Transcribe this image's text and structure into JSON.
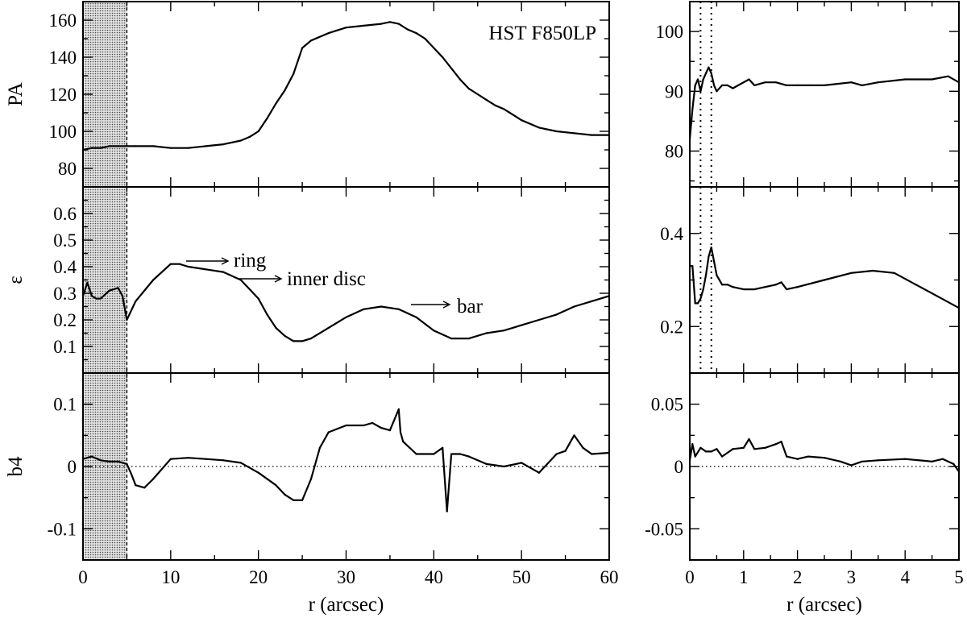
{
  "chart_data": [
    {
      "type": "line",
      "panel": "left-top",
      "ylabel": "PA",
      "ylim": [
        70,
        170
      ],
      "yticks": [
        80,
        100,
        120,
        140,
        160
      ],
      "xlim": [
        0,
        60
      ],
      "annotation": "HST F850LP",
      "shaded_region": [
        0,
        5
      ],
      "x": [
        0,
        1,
        2,
        3,
        4,
        5,
        6,
        8,
        10,
        12,
        14,
        16,
        18,
        19,
        20,
        21,
        22,
        23,
        24,
        25,
        26,
        28,
        30,
        32,
        34,
        35,
        36,
        37,
        38,
        39,
        40,
        41,
        42,
        43,
        44,
        45,
        46,
        47,
        48,
        50,
        52,
        54,
        56,
        58,
        60
      ],
      "values": [
        90,
        91,
        91,
        92,
        92,
        92,
        92,
        92,
        91,
        91,
        92,
        93,
        95,
        97,
        100,
        107,
        115,
        122,
        131,
        145,
        149,
        153,
        156,
        157,
        158,
        159,
        158,
        155,
        153,
        150,
        145,
        140,
        134,
        128,
        123,
        120,
        117,
        114,
        112,
        106,
        102,
        100,
        99,
        98,
        98
      ]
    },
    {
      "type": "line",
      "panel": "left-middle",
      "ylabel": "ε",
      "ylim": [
        0,
        0.7
      ],
      "yticks": [
        0.1,
        0.2,
        0.3,
        0.4,
        0.5,
        0.6
      ],
      "xlim": [
        0,
        60
      ],
      "shaded_region": [
        0,
        5
      ],
      "annotations": [
        "ring",
        "inner disc",
        "bar"
      ],
      "x": [
        0,
        0.5,
        1,
        1.5,
        2,
        3,
        4,
        4.5,
        5,
        6,
        8,
        10,
        11,
        12,
        14,
        16,
        18,
        20,
        21,
        22,
        23,
        24,
        25,
        26,
        28,
        30,
        32,
        34,
        36,
        38,
        40,
        42,
        44,
        46,
        48,
        50,
        52,
        54,
        56,
        58,
        60
      ],
      "values": [
        0.29,
        0.34,
        0.29,
        0.28,
        0.28,
        0.31,
        0.32,
        0.29,
        0.2,
        0.27,
        0.35,
        0.41,
        0.41,
        0.4,
        0.39,
        0.38,
        0.35,
        0.28,
        0.22,
        0.17,
        0.14,
        0.12,
        0.12,
        0.13,
        0.17,
        0.21,
        0.24,
        0.25,
        0.24,
        0.21,
        0.16,
        0.13,
        0.13,
        0.15,
        0.16,
        0.18,
        0.2,
        0.22,
        0.25,
        0.27,
        0.29
      ]
    },
    {
      "type": "line",
      "panel": "left-bottom",
      "ylabel": "b4",
      "xlabel": "r (arcsec)",
      "ylim": [
        -0.15,
        0.15
      ],
      "yticks": [
        -0.1,
        0,
        0.1
      ],
      "xlim": [
        0,
        60
      ],
      "xticks": [
        0,
        10,
        20,
        30,
        40,
        50,
        60
      ],
      "shaded_region": [
        0,
        5
      ],
      "x": [
        0,
        1,
        2,
        3,
        4,
        5,
        5.5,
        6,
        7,
        8,
        10,
        12,
        14,
        16,
        18,
        20,
        22,
        23,
        24,
        25,
        26,
        27,
        28,
        30,
        32,
        33,
        34,
        35,
        36,
        36.2,
        36.5,
        38,
        40,
        41,
        41.5,
        42,
        43,
        44,
        46,
        48,
        50,
        52,
        54,
        55,
        56,
        57,
        58,
        60
      ],
      "values": [
        0.012,
        0.016,
        0.01,
        0.008,
        0.008,
        0.004,
        -0.012,
        -0.03,
        -0.034,
        -0.02,
        0.012,
        0.014,
        0.012,
        0.01,
        0.006,
        -0.01,
        -0.03,
        -0.045,
        -0.054,
        -0.054,
        -0.02,
        0.03,
        0.055,
        0.066,
        0.066,
        0.07,
        0.062,
        0.058,
        0.092,
        0.055,
        0.04,
        0.02,
        0.02,
        0.03,
        -0.072,
        0.02,
        0.02,
        0.016,
        0.004,
        0.0,
        0.006,
        -0.01,
        0.02,
        0.025,
        0.05,
        0.03,
        0.02,
        0.022
      ]
    },
    {
      "type": "line",
      "panel": "right-top",
      "ylim": [
        74,
        105
      ],
      "yticks": [
        80,
        90,
        100
      ],
      "xlim": [
        0,
        5
      ],
      "vlines": [
        0.2,
        0.4
      ],
      "x": [
        0,
        0.05,
        0.1,
        0.15,
        0.2,
        0.25,
        0.3,
        0.35,
        0.4,
        0.45,
        0.5,
        0.6,
        0.7,
        0.8,
        0.9,
        1.0,
        1.1,
        1.2,
        1.4,
        1.6,
        1.8,
        2.0,
        2.2,
        2.5,
        3.0,
        3.2,
        3.5,
        4.0,
        4.5,
        4.8,
        5.0
      ],
      "values": [
        82,
        87,
        91,
        92,
        90,
        92,
        93,
        94,
        93,
        91,
        90,
        91,
        91,
        90.5,
        91,
        91.5,
        92,
        91,
        91.5,
        91.5,
        91,
        91,
        91,
        91,
        91.5,
        91,
        91.5,
        92,
        92,
        92.5,
        91.5
      ]
    },
    {
      "type": "line",
      "panel": "right-middle",
      "ylim": [
        0.1,
        0.5
      ],
      "yticks": [
        0.2,
        0.4
      ],
      "xlim": [
        0,
        5
      ],
      "vlines": [
        0.2,
        0.4
      ],
      "x": [
        0,
        0.05,
        0.1,
        0.15,
        0.2,
        0.25,
        0.3,
        0.35,
        0.4,
        0.45,
        0.5,
        0.6,
        0.7,
        0.8,
        1.0,
        1.2,
        1.4,
        1.6,
        1.7,
        1.8,
        2.0,
        2.5,
        3.0,
        3.4,
        3.8,
        4.2,
        4.6,
        5.0
      ],
      "values": [
        0.33,
        0.33,
        0.25,
        0.25,
        0.26,
        0.28,
        0.31,
        0.35,
        0.37,
        0.34,
        0.31,
        0.29,
        0.29,
        0.285,
        0.28,
        0.28,
        0.285,
        0.29,
        0.295,
        0.28,
        0.285,
        0.3,
        0.315,
        0.32,
        0.315,
        0.29,
        0.265,
        0.24
      ]
    },
    {
      "type": "line",
      "panel": "right-bottom",
      "xlabel": "r (arcsec)",
      "ylim": [
        -0.075,
        0.075
      ],
      "yticks": [
        -0.05,
        0,
        0.05
      ],
      "xlim": [
        0,
        5
      ],
      "xticks": [
        0,
        1,
        2,
        3,
        4,
        5
      ],
      "x": [
        0,
        0.05,
        0.1,
        0.2,
        0.3,
        0.4,
        0.5,
        0.6,
        0.8,
        1.0,
        1.1,
        1.2,
        1.4,
        1.6,
        1.7,
        1.8,
        2.0,
        2.2,
        2.5,
        2.8,
        3.0,
        3.2,
        3.5,
        4.0,
        4.5,
        4.7,
        4.8,
        4.9,
        5.0
      ],
      "values": [
        0.005,
        0.018,
        0.008,
        0.015,
        0.012,
        0.012,
        0.014,
        0.008,
        0.014,
        0.015,
        0.022,
        0.014,
        0.015,
        0.018,
        0.02,
        0.008,
        0.006,
        0.008,
        0.007,
        0.004,
        0.001,
        0.004,
        0.005,
        0.006,
        0.004,
        0.006,
        0.004,
        0.002,
        -0.004
      ]
    }
  ]
}
